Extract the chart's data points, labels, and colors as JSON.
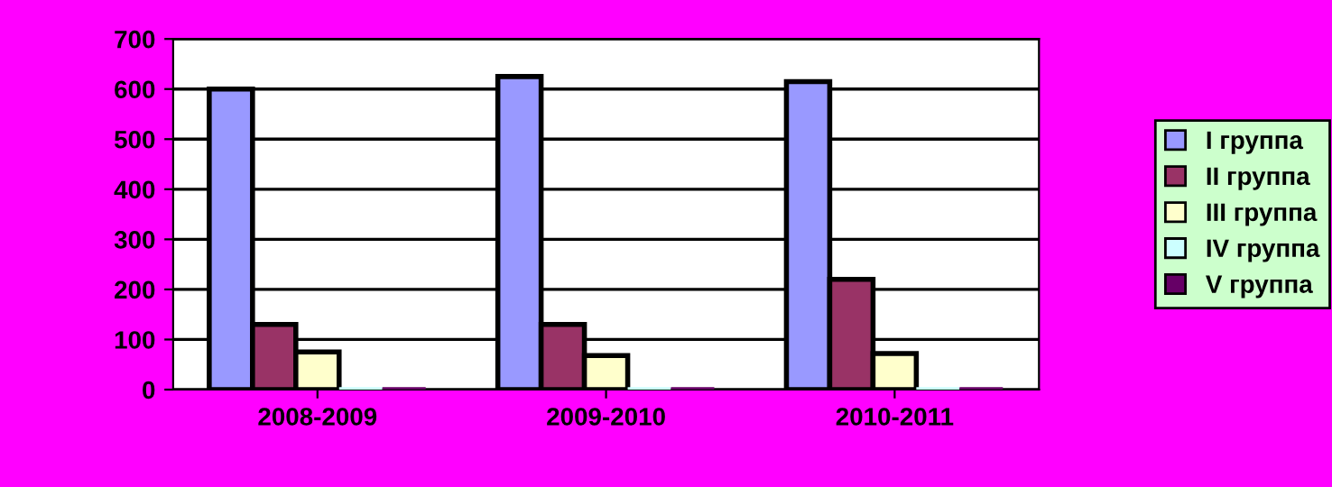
{
  "chart_data": {
    "type": "bar",
    "categories": [
      "2008-2009",
      "2009-2010",
      "2010-2011"
    ],
    "series": [
      {
        "name": "I группа",
        "color": "#9999ff",
        "values": [
          600,
          625,
          615
        ]
      },
      {
        "name": "II группа",
        "color": "#993366",
        "values": [
          130,
          130,
          220
        ]
      },
      {
        "name": "III группа",
        "color": "#ffffcc",
        "values": [
          75,
          68,
          72
        ]
      },
      {
        "name": "IV группа",
        "color": "#ccffff",
        "values": [
          0,
          0,
          0
        ]
      },
      {
        "name": "V группа",
        "color": "#660066",
        "values": [
          0,
          0,
          0
        ]
      }
    ],
    "ylim": [
      0,
      700
    ],
    "yticks": [
      0,
      100,
      200,
      300,
      400,
      500,
      600,
      700
    ],
    "grid": "y",
    "legend": "right"
  }
}
